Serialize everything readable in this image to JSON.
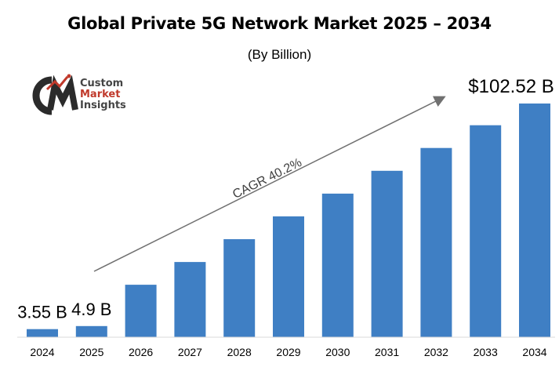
{
  "chart_data": {
    "type": "bar",
    "title": "Global Private 5G Network Market 2025 – 2034",
    "subtitle": "(By Billion)",
    "categories": [
      "2024",
      "2025",
      "2026",
      "2027",
      "2028",
      "2029",
      "2030",
      "2031",
      "2032",
      "2033",
      "2034"
    ],
    "values": [
      3.55,
      4.9,
      23,
      33,
      43,
      53,
      63,
      73,
      83,
      93,
      102.52
    ],
    "data_labels": [
      {
        "index": 0,
        "text": "3.55 B"
      },
      {
        "index": 1,
        "text": "4.9 B"
      },
      {
        "index": 10,
        "text": "$102.52 B"
      }
    ],
    "annotation": "CAGR 40.2%",
    "bar_color": "#3f7fc4",
    "grid": false,
    "legend": "none"
  },
  "logo": {
    "line1": "Custom",
    "line2": "Market",
    "line3": "Insights",
    "accent_color": "#c0392b"
  }
}
